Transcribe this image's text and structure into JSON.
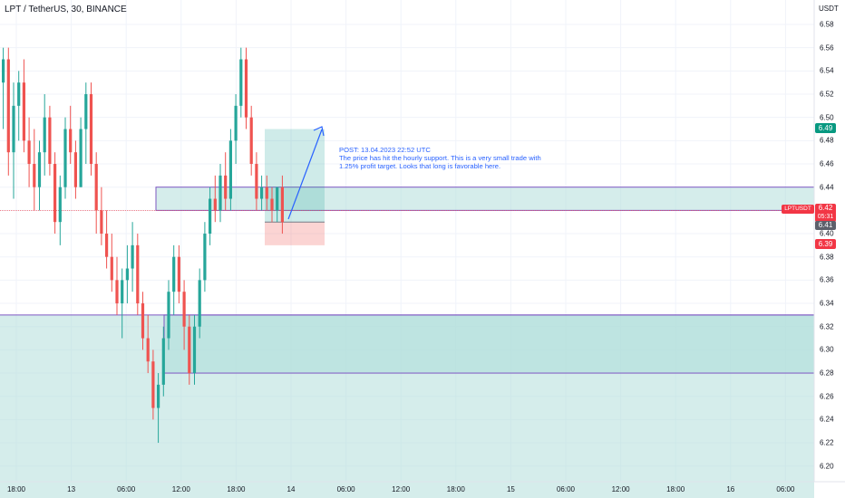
{
  "header": {
    "title": "LPT / TetherUS, 30, BINANCE"
  },
  "axis": {
    "currency": "USDT",
    "y_ticks": [
      "6.58",
      "6.56",
      "6.54",
      "6.52",
      "6.50",
      "6.48",
      "6.46",
      "6.44",
      "6.42",
      "6.40",
      "6.38",
      "6.36",
      "6.34",
      "6.32",
      "6.30",
      "6.28",
      "6.26",
      "6.24",
      "6.22",
      "6.20"
    ],
    "x_ticks": [
      "18:00",
      "13",
      "06:00",
      "12:00",
      "18:00",
      "14",
      "06:00",
      "12:00",
      "18:00",
      "15",
      "06:00",
      "12:00",
      "18:00",
      "16",
      "06:00"
    ]
  },
  "price_tags": {
    "target": "6.49",
    "symbol": "LPTUSDT",
    "current": "6.42",
    "countdown": "05:31",
    "last": "6.41",
    "stop": "6.39"
  },
  "annotation": {
    "line1": "POST: 13.04.2023 22:52 UTC",
    "line2": "The price has hit the hourly support. This is a very small trade with 1.25% profit target. Looks that long is favorable here."
  },
  "colors": {
    "up": "#26a69a",
    "down": "#ef5350",
    "zone_fill": "#b2dfdb",
    "zone_border": "#7e57c2",
    "annotation": "#2962ff",
    "tag_red": "#f23645",
    "tag_green": "#089981"
  },
  "chart_data": {
    "type": "candlestick",
    "symbol": "LPT / TetherUS",
    "interval": "30",
    "exchange": "BINANCE",
    "candles": [
      [
        6.53,
        6.56,
        6.49,
        6.55
      ],
      [
        6.55,
        6.56,
        6.45,
        6.47
      ],
      [
        6.47,
        6.53,
        6.43,
        6.51
      ],
      [
        6.51,
        6.54,
        6.48,
        6.53
      ],
      [
        6.53,
        6.55,
        6.47,
        6.48
      ],
      [
        6.48,
        6.5,
        6.44,
        6.46
      ],
      [
        6.46,
        6.49,
        6.42,
        6.44
      ],
      [
        6.44,
        6.48,
        6.42,
        6.47
      ],
      [
        6.47,
        6.52,
        6.45,
        6.5
      ],
      [
        6.5,
        6.51,
        6.45,
        6.46
      ],
      [
        6.46,
        6.47,
        6.4,
        6.41
      ],
      [
        6.41,
        6.45,
        6.39,
        6.44
      ],
      [
        6.44,
        6.5,
        6.43,
        6.49
      ],
      [
        6.49,
        6.51,
        6.46,
        6.47
      ],
      [
        6.47,
        6.48,
        6.43,
        6.44
      ],
      [
        6.44,
        6.5,
        6.44,
        6.49
      ],
      [
        6.49,
        6.53,
        6.46,
        6.52
      ],
      [
        6.52,
        6.53,
        6.45,
        6.46
      ],
      [
        6.46,
        6.47,
        6.4,
        6.42
      ],
      [
        6.42,
        6.44,
        6.39,
        6.4
      ],
      [
        6.4,
        6.42,
        6.37,
        6.38
      ],
      [
        6.38,
        6.4,
        6.35,
        6.36
      ],
      [
        6.36,
        6.38,
        6.33,
        6.34
      ],
      [
        6.34,
        6.37,
        6.31,
        6.36
      ],
      [
        6.36,
        6.39,
        6.34,
        6.37
      ],
      [
        6.37,
        6.41,
        6.35,
        6.39
      ],
      [
        6.39,
        6.4,
        6.33,
        6.34
      ],
      [
        6.34,
        6.35,
        6.3,
        6.31
      ],
      [
        6.31,
        6.33,
        6.28,
        6.29
      ],
      [
        6.29,
        6.3,
        6.24,
        6.25
      ],
      [
        6.25,
        6.28,
        6.22,
        6.27
      ],
      [
        6.27,
        6.32,
        6.26,
        6.31
      ],
      [
        6.31,
        6.36,
        6.3,
        6.35
      ],
      [
        6.35,
        6.39,
        6.33,
        6.38
      ],
      [
        6.38,
        6.39,
        6.34,
        6.35
      ],
      [
        6.35,
        6.36,
        6.3,
        6.32
      ],
      [
        6.32,
        6.33,
        6.27,
        6.28
      ],
      [
        6.28,
        6.33,
        6.27,
        6.32
      ],
      [
        6.32,
        6.37,
        6.31,
        6.36
      ],
      [
        6.36,
        6.41,
        6.35,
        6.4
      ],
      [
        6.4,
        6.44,
        6.39,
        6.43
      ],
      [
        6.43,
        6.45,
        6.41,
        6.42
      ],
      [
        6.42,
        6.46,
        6.41,
        6.45
      ],
      [
        6.45,
        6.47,
        6.42,
        6.43
      ],
      [
        6.43,
        6.49,
        6.42,
        6.48
      ],
      [
        6.48,
        6.52,
        6.46,
        6.51
      ],
      [
        6.51,
        6.56,
        6.5,
        6.55
      ],
      [
        6.55,
        6.56,
        6.49,
        6.5
      ],
      [
        6.5,
        6.51,
        6.45,
        6.46
      ],
      [
        6.46,
        6.47,
        6.42,
        6.43
      ],
      [
        6.43,
        6.45,
        6.42,
        6.44
      ],
      [
        6.44,
        6.45,
        6.42,
        6.43
      ],
      [
        6.43,
        6.44,
        6.41,
        6.42
      ],
      [
        6.42,
        6.44,
        6.41,
        6.44
      ],
      [
        6.44,
        6.45,
        6.4,
        6.41
      ]
    ],
    "zones": [
      {
        "top": 6.44,
        "bottom": 6.42
      },
      {
        "top": 6.33,
        "bottom": 6.28
      },
      {
        "top": 6.33,
        "bottom": 6.17
      }
    ],
    "long_position": {
      "entry": 6.41,
      "target": 6.49,
      "stop": 6.39
    },
    "current_price": 6.42,
    "ylim": [
      6.19,
      6.59
    ]
  }
}
